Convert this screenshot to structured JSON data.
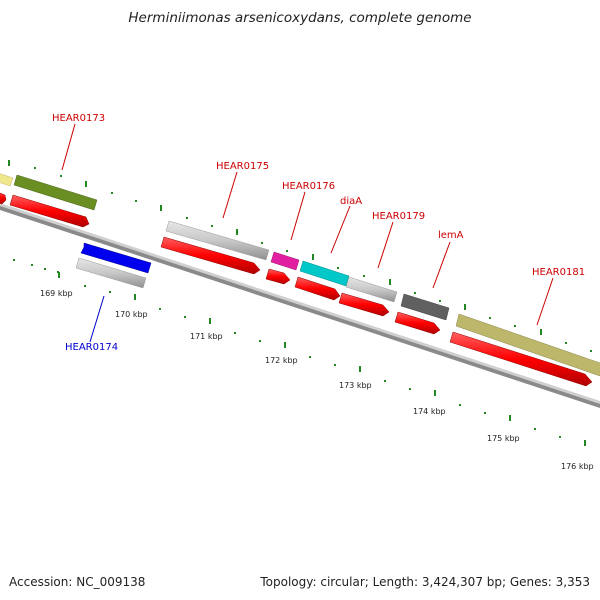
{
  "title": "Herminiimonas arsenicoxydans, complete genome",
  "footer": {
    "accession": "Accession: NC_009138",
    "topology": "Topology: circular; Length: 3,424,307 bp; Genes: 3,353"
  },
  "gene_labels": [
    "HEAR0173",
    "HEAR0175",
    "HEAR0176",
    "diaA",
    "HEAR0179",
    "lemA",
    "HEAR0181",
    "HEAR0174"
  ],
  "scale_labels": [
    "169 kbp",
    "170 kbp",
    "171 kbp",
    "172 kbp",
    "173 kbp",
    "174 kbp",
    "175 kbp",
    "176 kbp"
  ],
  "colors": {
    "cds": "#ff0000",
    "backbone": "#808080",
    "tick": "#228822",
    "olive": "#6b8e23",
    "khaki": "#bdb76b",
    "pale_yellow": "#f0e68c",
    "grey_feature": "#c0c0c0",
    "dark_grey": "#606060",
    "magenta": "#e020a0",
    "cyan": "#00c8c8",
    "blue": "#0000ee"
  }
}
